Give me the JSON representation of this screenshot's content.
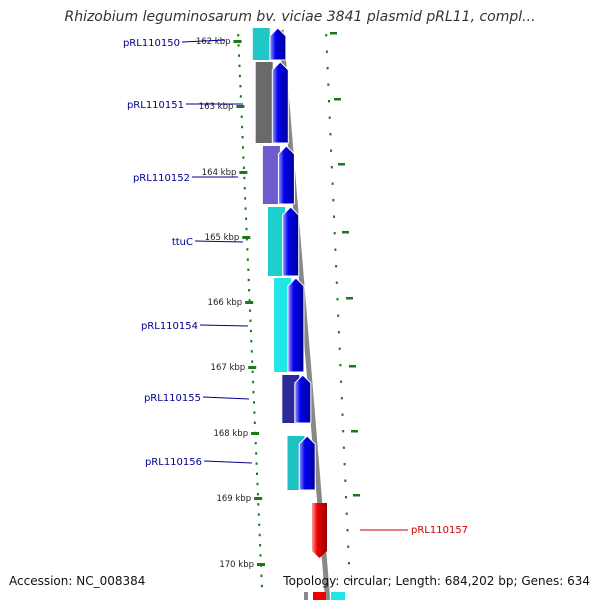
{
  "title": "Rhizobium leguminosarum bv. viciae 3841 plasmid pRL11, compl...",
  "footer": {
    "accession": "Accession: NC_008384",
    "topology": "Topology: circular; Length: 684,202 bp; Genes: 634"
  },
  "colors": {
    "cds_forward": "#0000ee",
    "cds_reverse": "#ee0000",
    "backbone": "#888888",
    "tick": "#1a7a1a",
    "label_forward": "#00008b",
    "label_reverse": "#cc0000"
  },
  "ticks": [
    "162 kbp",
    "163 kbp",
    "164 kbp",
    "165 kbp",
    "166 kbp",
    "167 kbp",
    "168 kbp",
    "169 kbp",
    "170 kbp"
  ],
  "features": [
    {
      "label": "pRL110150",
      "strand": "forward",
      "color": "#0000ee",
      "band": "#1fc7c7"
    },
    {
      "label": "pRL110151",
      "strand": "forward",
      "color": "#0000ee",
      "band": "#6a6a6a"
    },
    {
      "label": "pRL110152",
      "strand": "forward",
      "color": "#0000ee",
      "band": "#6e5ccc"
    },
    {
      "label": "ttuC",
      "strand": "forward",
      "color": "#0000ee",
      "band": "#1fcfcf"
    },
    {
      "label": "pRL110154",
      "strand": "forward",
      "color": "#0000ee",
      "band": "#22e6e6"
    },
    {
      "label": "pRL110155",
      "strand": "forward",
      "color": "#0000ee",
      "band": "#2a2a9a"
    },
    {
      "label": "pRL110156",
      "strand": "forward",
      "color": "#0000ee",
      "band": "#1fc2c2"
    },
    {
      "label": "pRL110157",
      "strand": "reverse",
      "color": "#ee0000",
      "band": "#22e6e6"
    }
  ]
}
